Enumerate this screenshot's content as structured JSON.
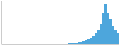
{
  "chart_data": {
    "type": "bar",
    "values": [
      0.3,
      0.2,
      0.3,
      0.2,
      0.3,
      0.2,
      0.3,
      0.2,
      0.3,
      0.2,
      0.3,
      0.2,
      0.3,
      0.2,
      0.3,
      0.2,
      0.3,
      0.2,
      0.3,
      0.2,
      0.3,
      0.2,
      0.3,
      0.2,
      0.3,
      0.2,
      0.3,
      0.4,
      0.5,
      0.6,
      0.8,
      1.0,
      1.5,
      2.0,
      2.5,
      3.0,
      4.0,
      5.5,
      7.0,
      9.0,
      13.0,
      20.0,
      26.0,
      20.0,
      16.0,
      12.0,
      9.0,
      7.0
    ],
    "color": "#4da6dc",
    "ylim": [
      0,
      28
    ],
    "grid": false,
    "tick_labels": false
  }
}
